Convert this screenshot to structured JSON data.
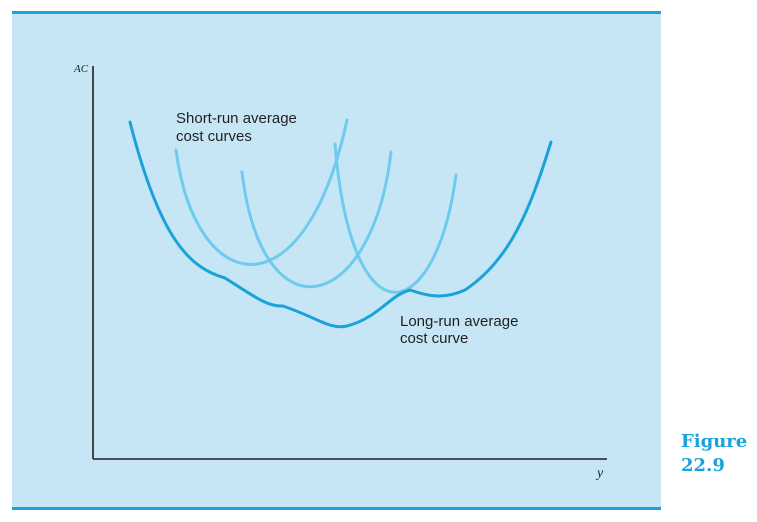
{
  "figure": {
    "caption_word": "Figure",
    "caption_number": "22.9"
  },
  "axes": {
    "y_label": "AC",
    "x_label": "y"
  },
  "annotations": {
    "short_run_line1": "Short-run average",
    "short_run_line2": "cost curves",
    "long_run_line1": "Long-run average",
    "long_run_line2": "cost curve"
  },
  "colors": {
    "panel_background": "#c6e6f6",
    "long_run_curve": "#1aa3d9",
    "short_run_curves": "#6fcbee",
    "axis": "#231f20",
    "caption": "#1aa3d9"
  }
}
